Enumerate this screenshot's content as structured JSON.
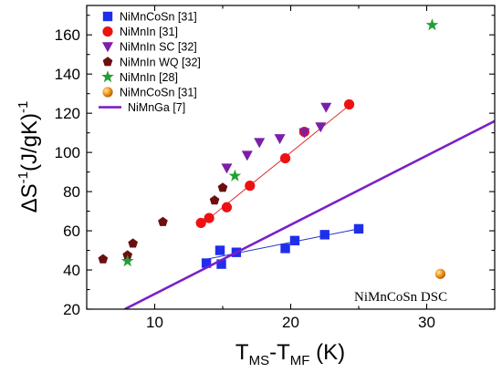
{
  "chart_data": {
    "type": "scatter",
    "xlabel": {
      "base": "T",
      "sub1": "MS",
      "mid": "-T",
      "sub2": "MF",
      "tail": " (K)"
    },
    "ylabel": {
      "pre": "ΔS",
      "sup": "-1",
      "post": "(J/gK)",
      "sup2": "-1"
    },
    "xlim": [
      5,
      35
    ],
    "ylim": [
      20,
      175
    ],
    "xticks": [
      10,
      20,
      30
    ],
    "yticks": [
      20,
      40,
      60,
      80,
      100,
      120,
      140,
      160
    ],
    "grid": false,
    "legend_position": "top-left",
    "annotation": {
      "text": "NiMnCoSn DSC",
      "x": 24.5,
      "y": 30
    },
    "series": [
      {
        "name": "NiMnCoSn [31]",
        "marker": "square",
        "color": "#1f2eea",
        "x": [
          13.8,
          14.8,
          14.9,
          16.0,
          19.6,
          20.3,
          22.5,
          25.0
        ],
        "y": [
          43.5,
          50.0,
          43.0,
          49.0,
          51.0,
          55.0,
          58.0,
          61.0
        ],
        "fit": {
          "x": [
            13.8,
            25.0
          ],
          "y": [
            45.5,
            61.0
          ],
          "color": "#2434c8"
        }
      },
      {
        "name": "NiMnIn [31]",
        "marker": "circle",
        "color": "#ee1111",
        "x": [
          13.4,
          14.0,
          15.3,
          17.0,
          19.6,
          21.0,
          24.3
        ],
        "y": [
          64.0,
          66.5,
          72.0,
          83.0,
          97.0,
          110.5,
          124.5
        ],
        "fit": {
          "x": [
            13.4,
            24.3
          ],
          "y": [
            63.0,
            124.0
          ],
          "color": "#dd3333"
        }
      },
      {
        "name": "NiMnIn SC [32]",
        "marker": "triangle-down",
        "color": "#7b1fa8",
        "x": [
          15.3,
          16.8,
          17.7,
          19.2,
          21.0,
          22.2,
          22.6
        ],
        "y": [
          92.0,
          98.5,
          105.0,
          107.0,
          110.0,
          113.0,
          123.0
        ]
      },
      {
        "name": "NiMnIn WQ [32]",
        "marker": "pentagon",
        "color": "#6b0f0f",
        "x": [
          6.2,
          8.0,
          8.4,
          10.6,
          14.4,
          15.0
        ],
        "y": [
          45.5,
          47.5,
          53.5,
          64.5,
          75.5,
          82.0
        ]
      },
      {
        "name": "NiMnIn [28]",
        "marker": "star",
        "color": "#22a033",
        "x": [
          8.0,
          15.9,
          30.4
        ],
        "y": [
          44.5,
          88.0,
          165.0
        ]
      },
      {
        "name": "NiMnCoSn [31]",
        "marker": "orange-ball",
        "color": "#f39a1e",
        "x": [
          31.0
        ],
        "y": [
          38.0
        ]
      },
      {
        "name": "NiMnGa [7]",
        "marker": "line",
        "color": "#7b1fc8",
        "x": [
          7.8,
          35.0
        ],
        "y": [
          20.0,
          116.0
        ]
      }
    ]
  }
}
